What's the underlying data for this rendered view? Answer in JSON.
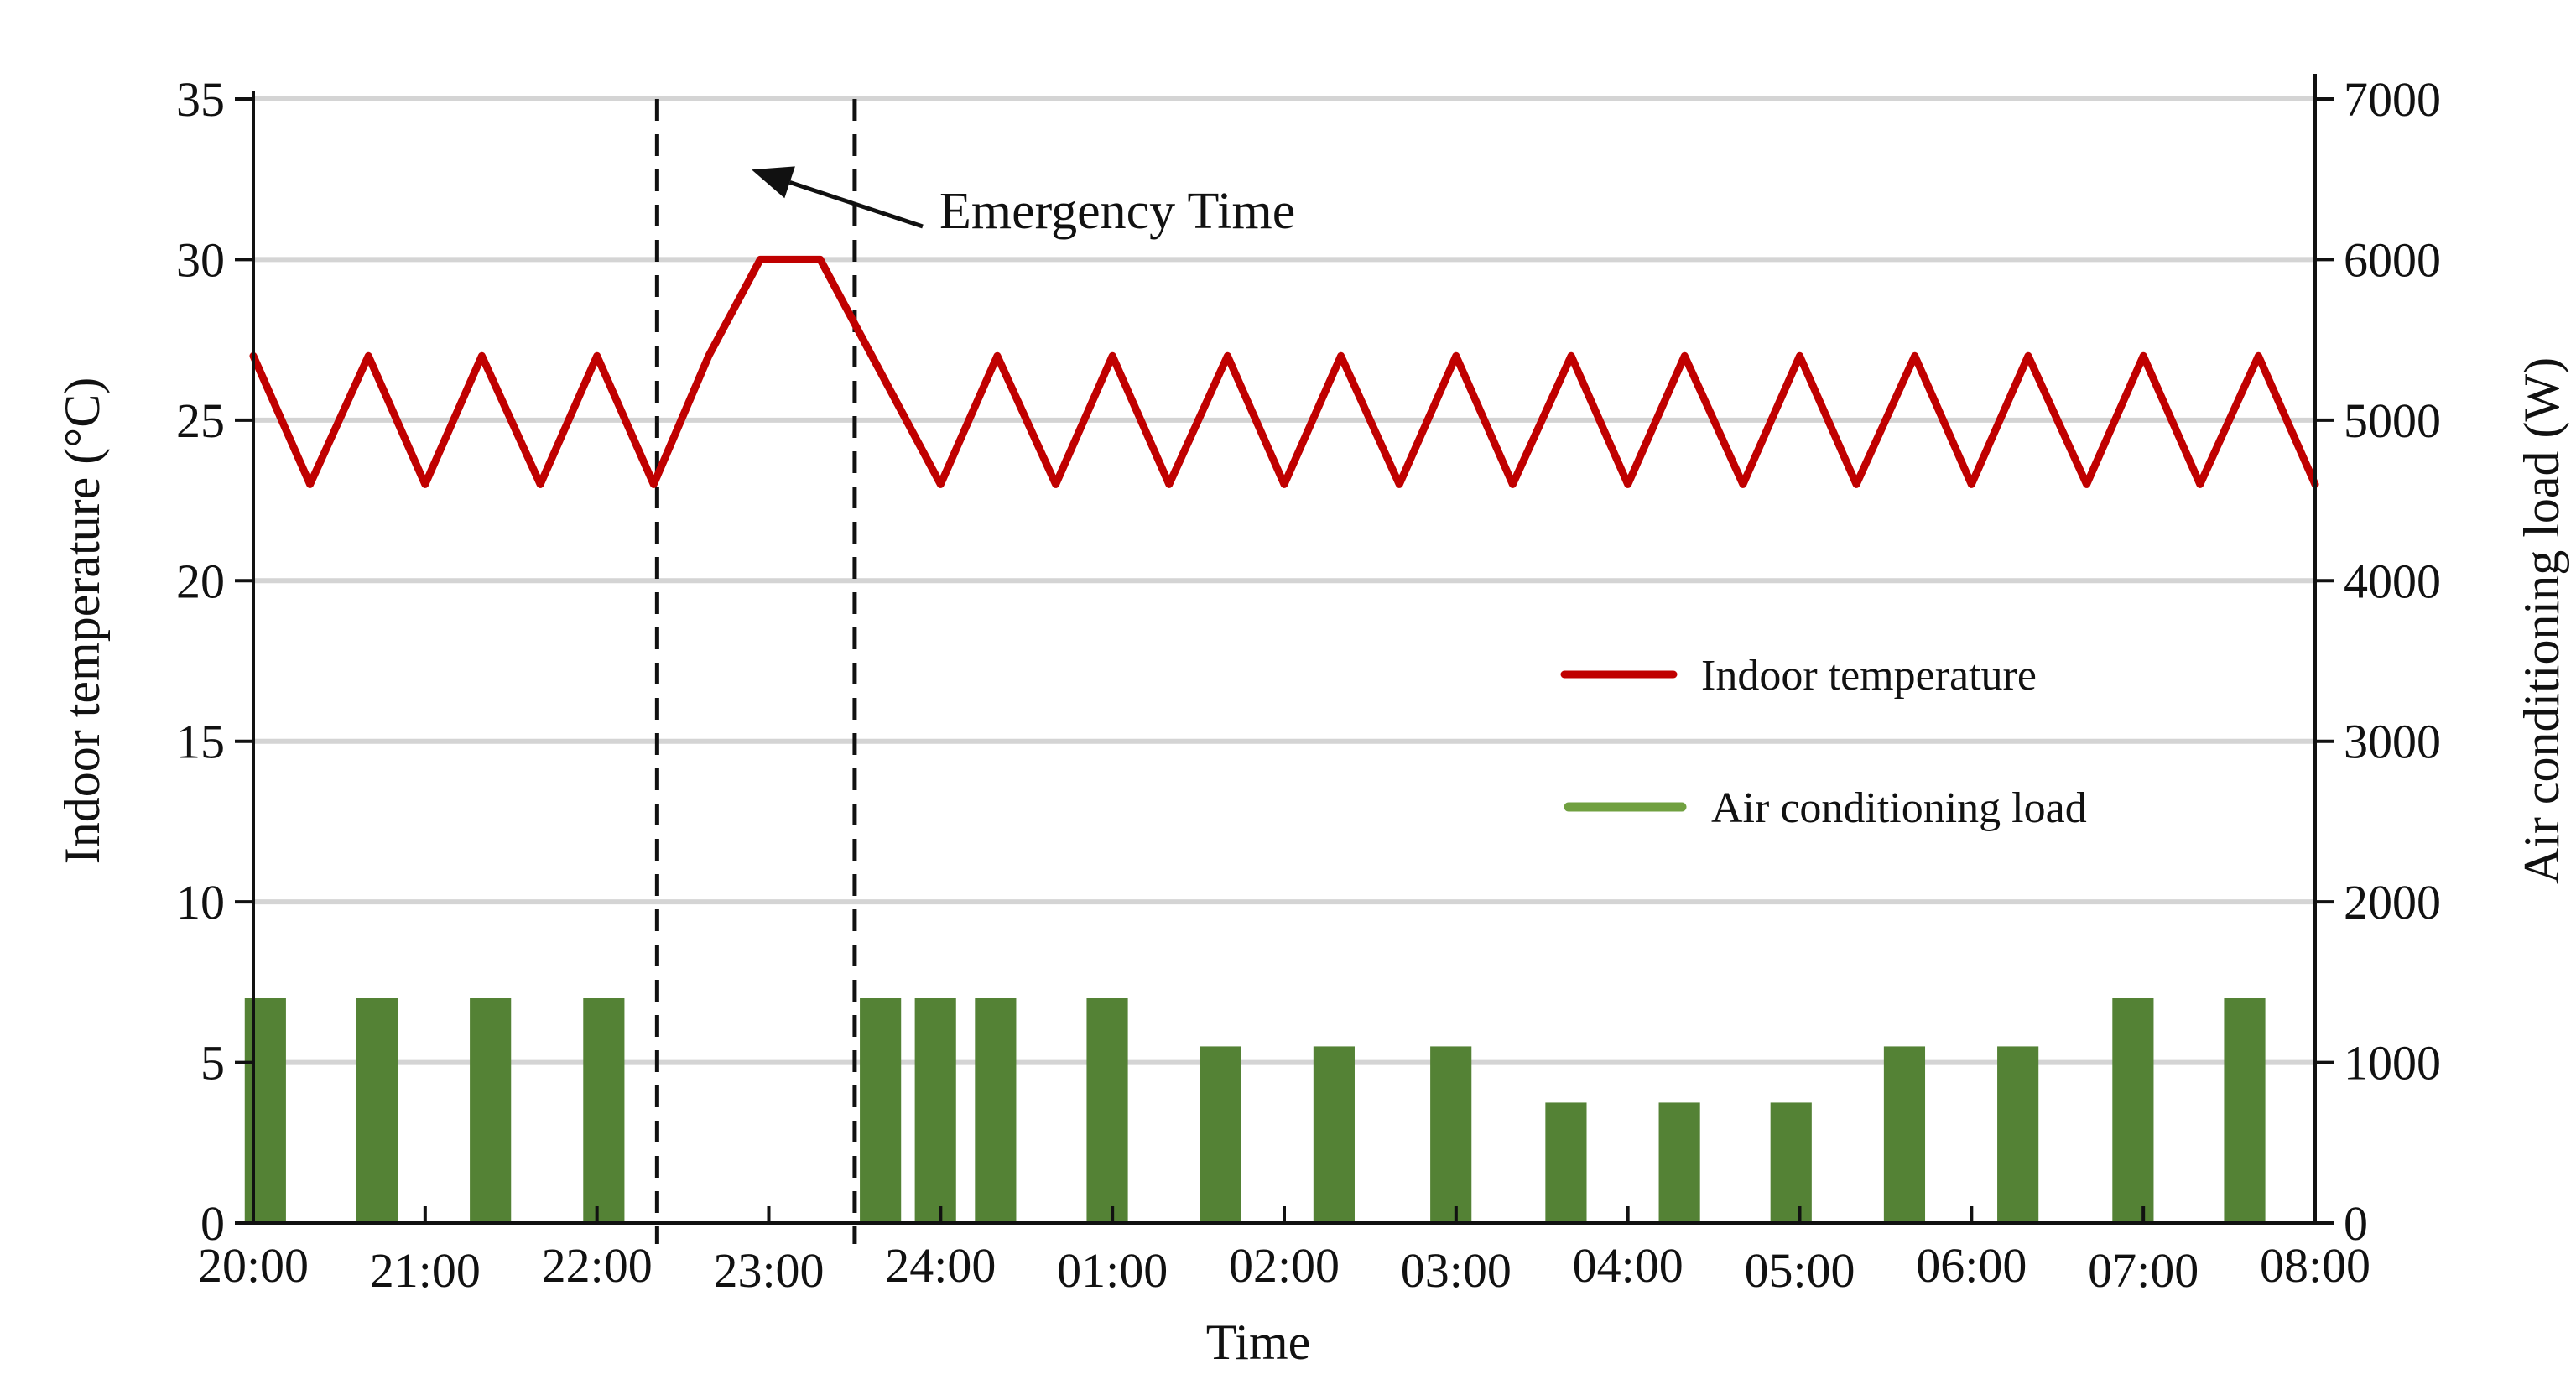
{
  "chart_data": {
    "type": "bar+line",
    "title": "",
    "xlabel": "Time",
    "ylabel_left": "Indoor temperature (°C)",
    "ylabel_right": "Air conditioning load (W)",
    "xlim": [
      0,
      12
    ],
    "ylim_left": [
      0,
      35
    ],
    "ylim_right": [
      0,
      7000
    ],
    "x_ticks": [
      {
        "x": 0,
        "label": "20:00"
      },
      {
        "x": 1,
        "label": "21:00"
      },
      {
        "x": 2,
        "label": "22:00"
      },
      {
        "x": 3,
        "label": "23:00"
      },
      {
        "x": 4,
        "label": "24:00"
      },
      {
        "x": 5,
        "label": "01:00"
      },
      {
        "x": 6,
        "label": "02:00"
      },
      {
        "x": 7,
        "label": "03:00"
      },
      {
        "x": 8,
        "label": "04:00"
      },
      {
        "x": 9,
        "label": "05:00"
      },
      {
        "x": 10,
        "label": "06:00"
      },
      {
        "x": 11,
        "label": "07:00"
      },
      {
        "x": 12,
        "label": "08:00"
      }
    ],
    "y_ticks_left": [
      {
        "value": 0,
        "label": "0"
      },
      {
        "value": 5,
        "label": "5"
      },
      {
        "value": 10,
        "label": "10"
      },
      {
        "value": 15,
        "label": "15"
      },
      {
        "value": 20,
        "label": "20"
      },
      {
        "value": 25,
        "label": "25"
      },
      {
        "value": 30,
        "label": "30"
      },
      {
        "value": 35,
        "label": "35"
      }
    ],
    "y_ticks_right": [
      {
        "value": 0,
        "label": "0"
      },
      {
        "value": 1000,
        "label": "1000"
      },
      {
        "value": 2000,
        "label": "2000"
      },
      {
        "value": 3000,
        "label": "3000"
      },
      {
        "value": 4000,
        "label": "4000"
      },
      {
        "value": 5000,
        "label": "5000"
      },
      {
        "value": 6000,
        "label": "6000"
      },
      {
        "value": 7000,
        "label": "7000"
      }
    ],
    "gridlines": true,
    "emergency_window": [
      2.35,
      3.5
    ],
    "annotation": {
      "text": "Emergency Time",
      "arrow_to_x": 2.9,
      "arrow_to_y": 32.8
    },
    "series": [
      {
        "name": "Indoor temperature",
        "type": "line",
        "axis": "left",
        "color": "#c00000",
        "x": [
          0,
          0.33,
          0.67,
          1.0,
          1.33,
          1.67,
          2.0,
          2.33,
          2.65,
          2.95,
          3.3,
          3.6,
          4.0,
          4.33,
          4.67,
          5.0,
          5.33,
          5.67,
          6.0,
          6.33,
          6.67,
          7.0,
          7.33,
          7.67,
          8.0,
          8.33,
          8.67,
          9.0,
          9.33,
          9.67,
          10.0,
          10.33,
          10.67,
          11.0,
          11.33,
          11.67,
          12.0
        ],
        "values": [
          27,
          23,
          27,
          23,
          27,
          23,
          27,
          23,
          27,
          30,
          30,
          27,
          23,
          27,
          23,
          27,
          23,
          27,
          23,
          27,
          23,
          27,
          23,
          27,
          23,
          27,
          23,
          27,
          23,
          27,
          23,
          27,
          23,
          27,
          23,
          27,
          23
        ]
      },
      {
        "name": "Air conditioning load",
        "type": "bar",
        "axis": "right",
        "color": "#548235",
        "bar_width": 0.24,
        "x": [
          0.07,
          0.72,
          1.38,
          2.04,
          3.65,
          3.97,
          4.32,
          4.97,
          5.63,
          6.29,
          6.97,
          7.64,
          8.3,
          8.95,
          9.61,
          10.27,
          10.94,
          11.59
        ],
        "values": [
          1400,
          1400,
          1400,
          1400,
          1400,
          1400,
          1400,
          1400,
          1100,
          1100,
          1100,
          750,
          750,
          750,
          1100,
          1100,
          1400,
          1400
        ]
      }
    ],
    "legend": {
      "position": "center-right",
      "entries": [
        {
          "label": "Indoor temperature",
          "color": "#c00000"
        },
        {
          "label": "Air conditioning load",
          "color": "#70a040"
        }
      ]
    }
  }
}
